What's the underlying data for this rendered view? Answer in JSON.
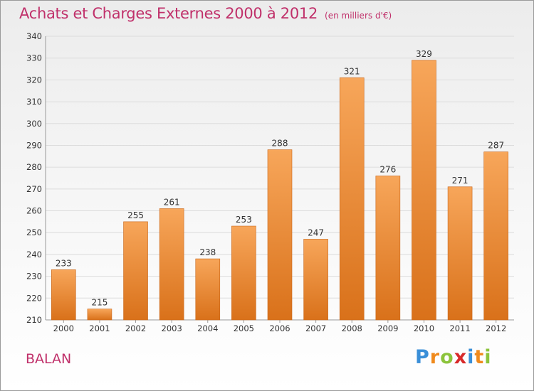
{
  "header": {
    "title": "Achats et Charges Externes 2000 à 2012",
    "subtitle": "(en milliers d'€)"
  },
  "footer": {
    "city": "BALAN",
    "logo_letters": [
      {
        "char": "P",
        "color": "#3a8fd8"
      },
      {
        "char": "r",
        "color": "#f08a1c"
      },
      {
        "char": "o",
        "color": "#8cc43c"
      },
      {
        "char": "x",
        "color": "#d82a2a"
      },
      {
        "char": "i",
        "color": "#3a8fd8"
      },
      {
        "char": "t",
        "color": "#f08a1c"
      },
      {
        "char": "i",
        "color": "#8cc43c"
      }
    ]
  },
  "chart_data": {
    "type": "bar",
    "title": "Achats et Charges Externes 2000 à 2012",
    "subtitle": "(en milliers d'€)",
    "categories": [
      "2000",
      "2001",
      "2002",
      "2003",
      "2004",
      "2005",
      "2006",
      "2007",
      "2008",
      "2009",
      "2010",
      "2011",
      "2012"
    ],
    "values": [
      233,
      215,
      255,
      261,
      238,
      253,
      288,
      247,
      321,
      276,
      329,
      271,
      287
    ],
    "ylim": [
      210,
      340
    ],
    "yticks": [
      210,
      220,
      230,
      240,
      250,
      260,
      270,
      280,
      290,
      300,
      310,
      320,
      330,
      340
    ],
    "grid": true,
    "colors": {
      "bar_top": "#f7a65a",
      "bar_bottom": "#d9711a",
      "bar_edge": "#c8661a",
      "title": "#c0306a"
    }
  }
}
